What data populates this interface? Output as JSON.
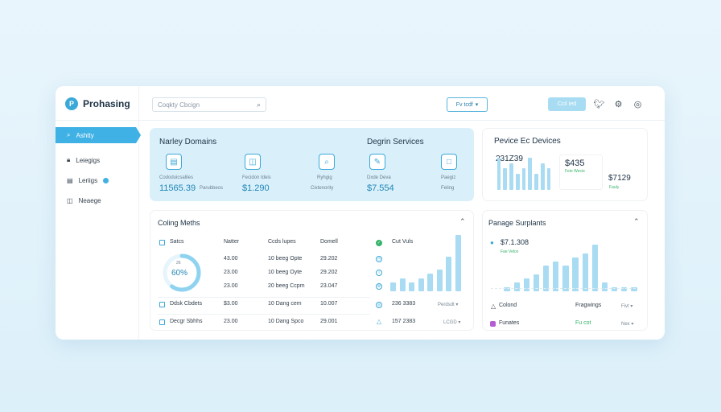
{
  "header": {
    "brand_letter": "P",
    "brand_name": "Prohasing",
    "search_placeholder": "Coqkty Cbcign",
    "select_label": "Fv tcdf",
    "action_button": "Ccil Ied"
  },
  "sidebar": {
    "items": [
      {
        "label": "Ashtty",
        "icon": "search-icon",
        "active": true
      },
      {
        "label": "Leiegigs",
        "icon": "lock-icon",
        "active": false
      },
      {
        "label": "Leriigs",
        "icon": "doc-icon",
        "active": false,
        "badge": true
      },
      {
        "label": "Neaege",
        "icon": "bag-icon",
        "active": false
      }
    ]
  },
  "domains_panel": {
    "title": "Narley Domains",
    "subtitle": "Degrin Services",
    "stats": [
      {
        "icon": "chart-icon",
        "label": "Cododuicsaliles",
        "value": "11565.39",
        "note": "Parubbeos"
      },
      {
        "icon": "folder-icon",
        "label": "Fecidon Ideis",
        "value": "$1.290",
        "note": ""
      },
      {
        "icon": "search-icon",
        "label": "Ryhgig",
        "value": "",
        "note": "Cixtenority"
      },
      {
        "icon": "pencil-icon",
        "label": "Dxde Deva",
        "value": "$7.554",
        "note": ""
      },
      {
        "icon": "note-icon",
        "label": "Paegiz",
        "value": "",
        "note": "Feling"
      }
    ]
  },
  "devices_panel": {
    "title": "Pevice Ec Devices",
    "value1": "231Z39",
    "value2": "$435",
    "value2_note": "Feie Wecie",
    "value3": "$7129",
    "value3_note": "Fauly"
  },
  "methods_panel": {
    "title": "Coling Meths",
    "columns": [
      "Satcs",
      "Natter",
      "Ccds lupes",
      "Domell"
    ],
    "gauge_value": "60%",
    "gauge_label": "26",
    "rows": [
      {
        "a": "",
        "b": "43.00",
        "c": "10 beeg Opte",
        "d": "29.202"
      },
      {
        "a": "",
        "b": "23.00",
        "c": "10 beeg Oyte",
        "d": "29.202"
      },
      {
        "a": "",
        "b": "23.00",
        "c": "20 beeg Ccpm",
        "d": "23.047"
      },
      {
        "a": "Ddsk Cbdets",
        "b": "$3.00",
        "c": "10 Dang cem",
        "d": "10.007"
      },
      {
        "a": "Decgr Sbhhs",
        "b": "23.00",
        "c": "10 Dang Spco",
        "d": "29.001"
      }
    ],
    "right_header": "Cut Vuls",
    "right_rows": [
      {
        "value": "236 3383",
        "select": "Perdsdt"
      },
      {
        "value": "157 2383",
        "select": "LCGD"
      }
    ]
  },
  "surplus_panel": {
    "title": "Panage Surplants",
    "value": "$7.1.308",
    "value_note": "Fae Velce",
    "rows": [
      {
        "label": "Colond",
        "value": "Fragwings",
        "select": "Fivt"
      },
      {
        "label": "Funates",
        "value": "Fu cot",
        "select": "Nex"
      }
    ]
  },
  "colors": {
    "accent": "#3fb1e5",
    "panel_blue": "#d9f0fb",
    "bar": "#a9dcf3",
    "positive": "#36b36a"
  },
  "chart_data": [
    {
      "type": "bar",
      "panel": "devices",
      "values": [
        6,
        4,
        5,
        3,
        4,
        6,
        3,
        5,
        4
      ]
    },
    {
      "type": "bar",
      "panel": "methods",
      "values": [
        2,
        3,
        2,
        3,
        4,
        5,
        8,
        13
      ]
    },
    {
      "type": "bar",
      "panel": "surplus",
      "values": [
        1,
        2,
        3,
        4,
        6,
        7,
        6,
        8,
        9,
        11,
        2,
        1,
        1,
        1
      ]
    }
  ]
}
